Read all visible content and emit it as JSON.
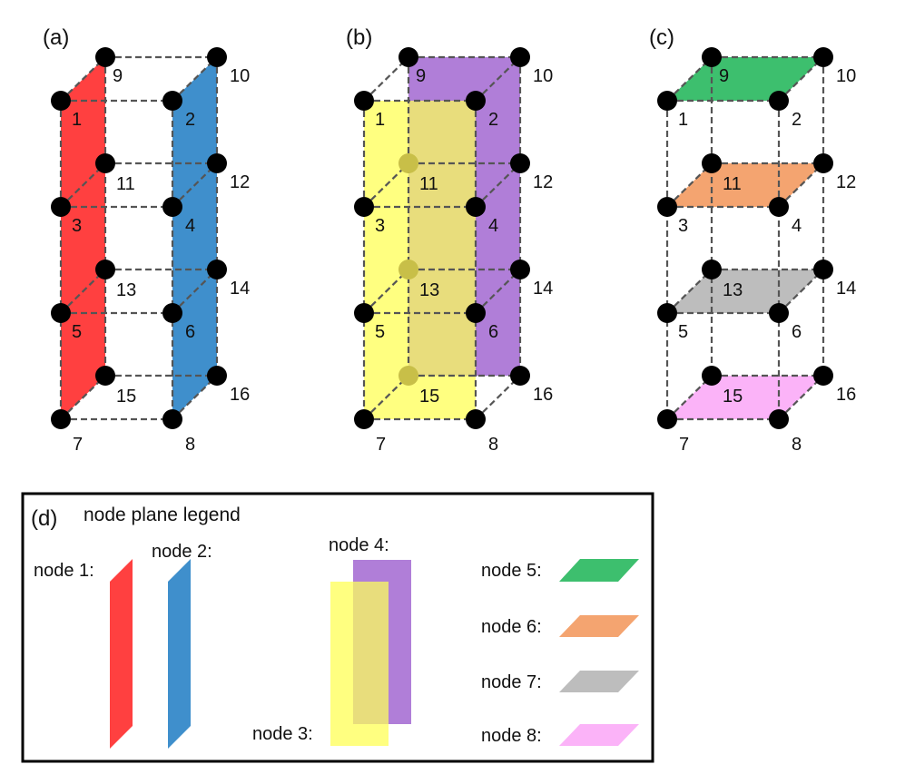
{
  "panels": [
    {
      "id": "a",
      "label": "(a)"
    },
    {
      "id": "b",
      "label": "(b)"
    },
    {
      "id": "c",
      "label": "(c)"
    }
  ],
  "node_labels": [
    "1",
    "2",
    "3",
    "4",
    "5",
    "6",
    "7",
    "8",
    "9",
    "10",
    "11",
    "12",
    "13",
    "14",
    "15",
    "16"
  ],
  "legend": {
    "panel_label": "(d)",
    "title": "node plane legend",
    "items": [
      {
        "label": "node 1:",
        "color": "#ff4040"
      },
      {
        "label": "node 2:",
        "color": "#3f8fcc"
      },
      {
        "label": "node 3:",
        "color": "#ffff80"
      },
      {
        "label": "node 4:",
        "color": "#b07ed8"
      },
      {
        "label": "node 5:",
        "color": "#3dbf6e"
      },
      {
        "label": "node 6:",
        "color": "#f4a470"
      },
      {
        "label": "node 7:",
        "color": "#bdbdbd"
      },
      {
        "label": "node 8:",
        "color": "#fbb3f8"
      }
    ],
    "overlap_color": "#e8dd7c"
  },
  "colors": {
    "red": "#ff4040",
    "blue": "#3f8fcc",
    "yellow": "#ffff80",
    "purple": "#b07ed8",
    "overlap": "#e8dd7c",
    "green": "#3dbf6e",
    "orange": "#f4a470",
    "gray": "#bdbdbd",
    "pink": "#fbb3f8",
    "hidden_node": "#c8bf48"
  }
}
